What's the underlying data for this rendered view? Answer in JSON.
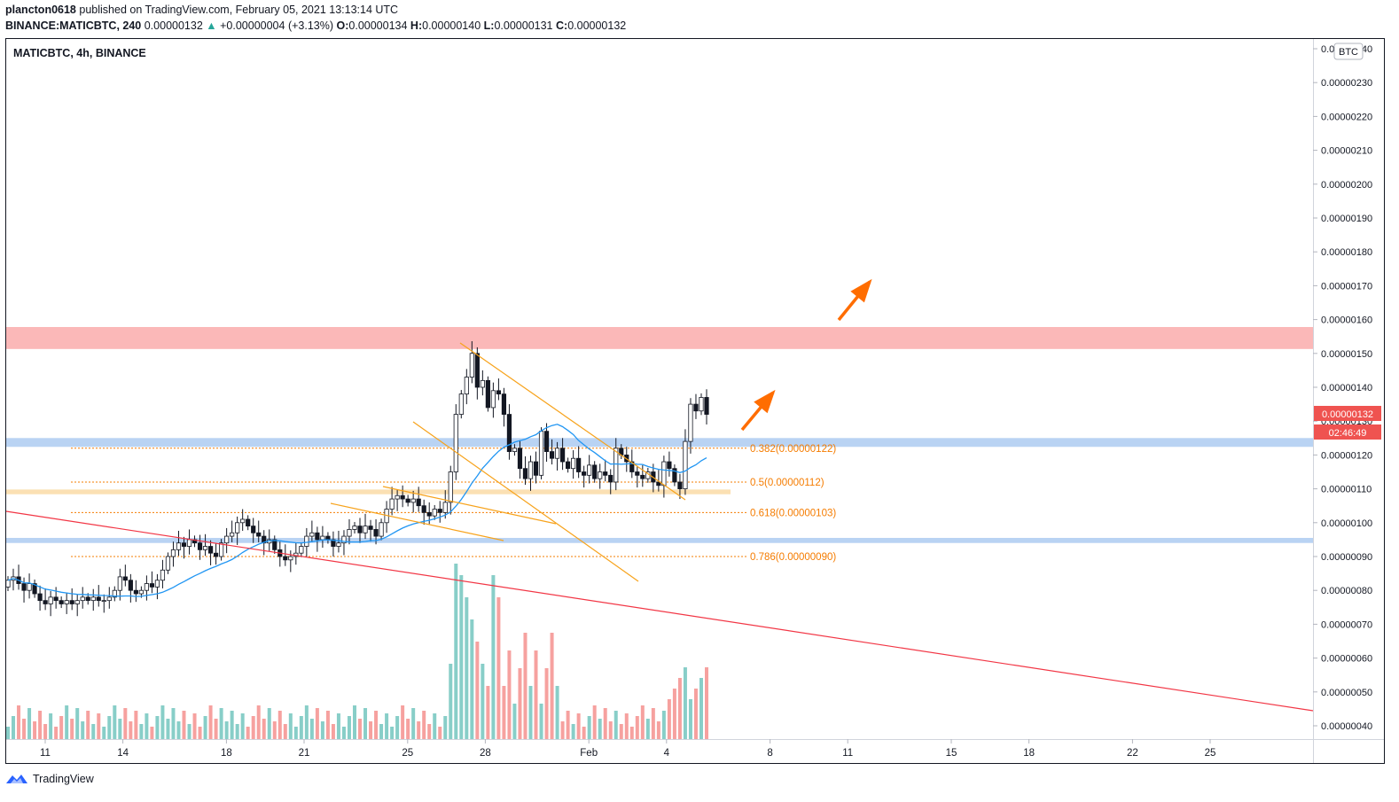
{
  "header": {
    "publisher": "plancton0618",
    "published_text": "published on TradingView.com, February 05, 2021 13:13:14 UTC",
    "symbol_line": "BINANCE:MATICBTC, 240",
    "last": "0.00000132",
    "change_arrow": "▲",
    "change": "+0.00000004 (+3.13%)",
    "o_label": "O:",
    "o": "0.00000134",
    "h_label": "H:",
    "h": "0.00000140",
    "l_label": "L:",
    "l": "0.00000131",
    "c_label": "C:",
    "c": "0.00000132"
  },
  "legend": {
    "title": "MATICBTC, 4h, BINANCE"
  },
  "axis": {
    "currency_badge": "BTC",
    "price_tag": "0.00000132",
    "countdown": "02:46:49"
  },
  "fib": [
    {
      "label": "0.382(0.00000122)",
      "value": 1.22
    },
    {
      "label": "0.5(0.00000112)",
      "value": 1.12
    },
    {
      "label": "0.618(0.00000103)",
      "value": 1.03
    },
    {
      "label": "0.786(0.00000090)",
      "value": 0.9
    }
  ],
  "footer": {
    "brand": "TradingView",
    "logo_icon": "tradingview-logo-icon"
  },
  "colors": {
    "up": "#26a69a",
    "down": "#ef5350",
    "ma": "#2196f3",
    "resistance_zone": "#fbb8b8",
    "support_zone": "#b9d3f3",
    "fib": "#f57c00",
    "trendline": "#f23645",
    "arrow": "#ff6d00",
    "wedge": "#f7a31c"
  },
  "chart_data": {
    "type": "candlestick",
    "title": "MATICBTC, 4h, BINANCE",
    "y_unit": "BTC (×1e-6)",
    "ylim": [
      0.38,
      2.43
    ],
    "y_ticks": [
      "0.00000240",
      "0.00000230",
      "0.00000220",
      "0.00000210",
      "0.00000200",
      "0.00000190",
      "0.00000180",
      "0.00000170",
      "0.00000160",
      "0.00000150",
      "0.00000140",
      "0.00000130",
      "0.00000120",
      "0.00000110",
      "0.00000100",
      "0.00000090",
      "0.00000080",
      "0.00000070",
      "0.00000060",
      "0.00000050",
      "0.00000040"
    ],
    "y_tick_values": [
      2.4,
      2.3,
      2.2,
      2.1,
      2.0,
      1.9,
      1.8,
      1.7,
      1.6,
      1.5,
      1.4,
      1.3,
      1.2,
      1.1,
      1.0,
      0.9,
      0.8,
      0.7,
      0.6,
      0.5,
      0.4
    ],
    "x_ticks": [
      "11",
      "14",
      "18",
      "21",
      "25",
      "28",
      "Feb",
      "4",
      "8",
      "11",
      "15",
      "18",
      "22",
      "25"
    ],
    "x_tick_days": [
      11,
      14,
      18,
      21,
      25,
      28,
      32,
      35,
      39,
      42,
      46,
      49,
      53,
      56
    ],
    "x_start_day": 9.5,
    "x_end_day": 60.5,
    "x_day_unit": "days of January 2021 (32 = Feb 1)",
    "closes": [
      0.83,
      0.84,
      0.82,
      0.8,
      0.82,
      0.79,
      0.77,
      0.76,
      0.78,
      0.77,
      0.76,
      0.77,
      0.76,
      0.77,
      0.78,
      0.77,
      0.78,
      0.77,
      0.77,
      0.78,
      0.8,
      0.84,
      0.83,
      0.8,
      0.79,
      0.8,
      0.82,
      0.81,
      0.83,
      0.86,
      0.9,
      0.92,
      0.94,
      0.93,
      0.95,
      0.94,
      0.92,
      0.93,
      0.91,
      0.9,
      0.94,
      0.96,
      0.97,
      1.0,
      1.01,
      0.99,
      0.97,
      0.96,
      0.94,
      0.95,
      0.92,
      0.9,
      0.89,
      0.9,
      0.91,
      0.93,
      0.96,
      0.97,
      0.95,
      0.96,
      0.95,
      0.93,
      0.94,
      0.96,
      0.98,
      0.99,
      0.97,
      0.99,
      0.98,
      0.96,
      1.0,
      1.04,
      1.07,
      1.08,
      1.07,
      1.06,
      1.07,
      1.05,
      1.03,
      1.02,
      1.04,
      1.03,
      1.06,
      1.15,
      1.32,
      1.38,
      1.43,
      1.5,
      1.4,
      1.42,
      1.34,
      1.39,
      1.38,
      1.32,
      1.21,
      1.22,
      1.16,
      1.13,
      1.18,
      1.14,
      1.27,
      1.21,
      1.19,
      1.22,
      1.18,
      1.16,
      1.19,
      1.15,
      1.14,
      1.17,
      1.13,
      1.15,
      1.14,
      1.12,
      1.22,
      1.2,
      1.18,
      1.15,
      1.14,
      1.13,
      1.15,
      1.12,
      1.11,
      1.18,
      1.16,
      1.12,
      1.1,
      1.24,
      1.35,
      1.33,
      1.37,
      1.32
    ],
    "volume_unit": "relative",
    "volumes_note": "volume bars shown at bottom; no axis printed",
    "moving_average": "blue line (approx. 20-period)",
    "zones": [
      {
        "name": "resistance",
        "from": 1.513,
        "to": 1.578
      },
      {
        "name": "support",
        "from": 1.224,
        "to": 1.25
      },
      {
        "name": "support",
        "from": 1.084,
        "to": 1.098
      },
      {
        "name": "support",
        "from": 0.94,
        "to": 0.955
      }
    ]
  }
}
